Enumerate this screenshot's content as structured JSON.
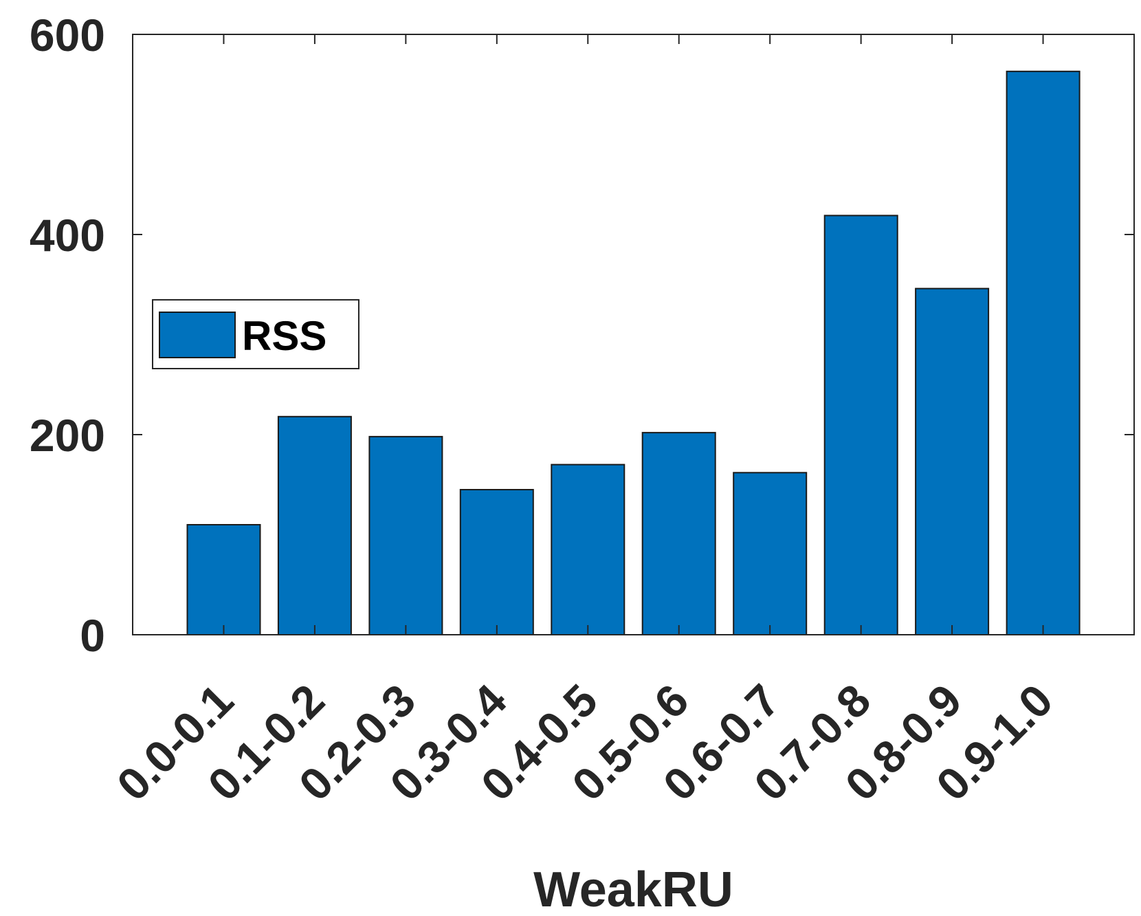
{
  "chart_data": {
    "type": "bar",
    "categories": [
      "0.0-0.1",
      "0.1-0.2",
      "0.2-0.3",
      "0.3-0.4",
      "0.4-0.5",
      "0.5-0.6",
      "0.6-0.7",
      "0.7-0.8",
      "0.8-0.9",
      "0.9-1.0"
    ],
    "series": [
      {
        "name": "RSS",
        "values": [
          110,
          218,
          198,
          145,
          170,
          202,
          162,
          419,
          346,
          563
        ]
      }
    ],
    "title": "",
    "xlabel": "WeakRU",
    "ylabel": "",
    "ylim": [
      0,
      600
    ],
    "yticks": [
      0,
      200,
      400,
      600
    ],
    "grid": false,
    "legend": "middle-left",
    "colors": {
      "bar": "#0072BD",
      "bar_edge": "#1a1a1a",
      "axis": "#262626"
    }
  }
}
